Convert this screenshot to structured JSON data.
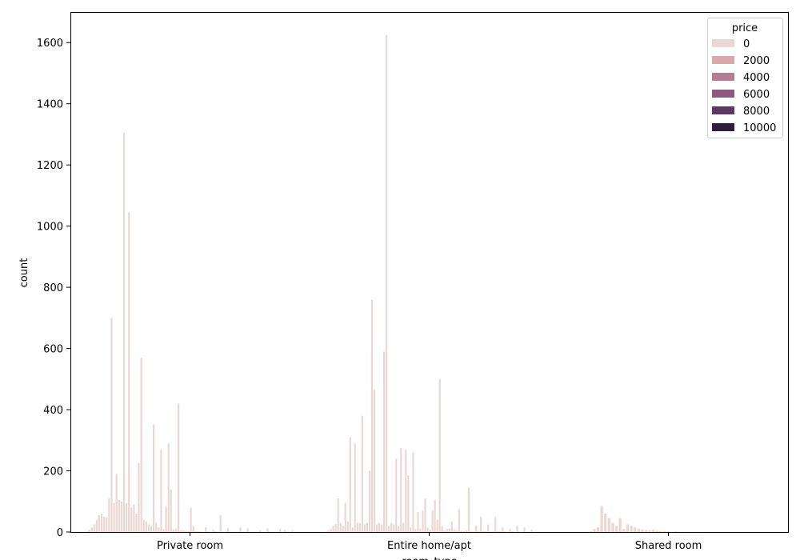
{
  "chart_data": {
    "type": "bar",
    "xlabel": "room_type",
    "ylabel": "count",
    "categories": [
      "Private room",
      "Entire home/apt",
      "Shared room"
    ],
    "ylim": [
      0,
      1700
    ],
    "yticks": [
      0,
      200,
      400,
      600,
      800,
      1000,
      1200,
      1400,
      1600
    ],
    "grid": false,
    "legend": {
      "title": "price",
      "placement": "top-right",
      "entries": [
        {
          "label": "0",
          "color": "#ead6d2"
        },
        {
          "label": "2000",
          "color": "#d8a9ab"
        },
        {
          "label": "4000",
          "color": "#b57d93"
        },
        {
          "label": "6000",
          "color": "#8c5a81"
        },
        {
          "label": "8000",
          "color": "#5e3a63"
        },
        {
          "label": "10000",
          "color": "#2d1e3e"
        }
      ]
    },
    "bar_color": "#ead6d2",
    "series_note_values": {
      "Private room": [
        3,
        8,
        15,
        25,
        40,
        55,
        60,
        50,
        48,
        110,
        700,
        95,
        190,
        105,
        100,
        1305,
        95,
        1045,
        80,
        90,
        60,
        225,
        570,
        40,
        35,
        25,
        20,
        350,
        30,
        15,
        270,
        10,
        85,
        290,
        140,
        8,
        10,
        420,
        6,
        5,
        4,
        3,
        80,
        20,
        3,
        3,
        2,
        1,
        15,
        2,
        1,
        8,
        2,
        1,
        55,
        1,
        1,
        12,
        1,
        1,
        0,
        1,
        15,
        1,
        0,
        12,
        1,
        0,
        0,
        1,
        5,
        0,
        0,
        12,
        1,
        0,
        0,
        1,
        10,
        0,
        8,
        1,
        0,
        5
      ],
      "Entire home/apt": [
        2,
        5,
        10,
        20,
        25,
        110,
        30,
        20,
        95,
        35,
        310,
        15,
        290,
        30,
        30,
        380,
        25,
        30,
        200,
        760,
        465,
        25,
        30,
        25,
        590,
        1625,
        20,
        30,
        25,
        240,
        20,
        275,
        30,
        270,
        185,
        15,
        260,
        10,
        65,
        12,
        70,
        110,
        15,
        8,
        70,
        105,
        40,
        500,
        20,
        5,
        10,
        12,
        35,
        8,
        5,
        75,
        4,
        3,
        5,
        145,
        3,
        2,
        20,
        4,
        50,
        3,
        2,
        25,
        3,
        2,
        50,
        3,
        2,
        15,
        2,
        1,
        10,
        2,
        1,
        20,
        1,
        1,
        15,
        1,
        1,
        8
      ],
      "Shared room": [
        2,
        10,
        15,
        85,
        60,
        45,
        30,
        20,
        45,
        10,
        25,
        20,
        15,
        10,
        8,
        6,
        5,
        8,
        4,
        3,
        3,
        2,
        1,
        2,
        1,
        1,
        1,
        0,
        1,
        0,
        1
      ]
    }
  }
}
